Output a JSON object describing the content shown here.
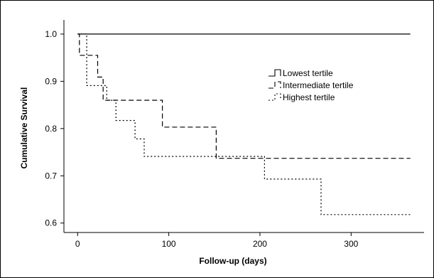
{
  "chart_data": {
    "type": "line",
    "subtype": "kaplan-meier step",
    "title": "",
    "xlabel": "Follow-up (days)",
    "ylabel": "Cumulative Survival",
    "xlim": [
      -15,
      380
    ],
    "ylim": [
      0.58,
      1.03
    ],
    "xticks": [
      0,
      100,
      200,
      300
    ],
    "yticks": [
      0.6,
      0.7,
      0.8,
      0.9,
      1.0
    ],
    "ytick_labels": [
      "0.6",
      "0.7",
      "0.8",
      "0.9",
      "1.0"
    ],
    "grid": false,
    "legend_position": "upper-right",
    "series": [
      {
        "name": "Lowest tertile",
        "style": "solid",
        "color": "#000000",
        "steps": [
          [
            0,
            1.0
          ],
          [
            365,
            1.0
          ]
        ]
      },
      {
        "name": "Intermediate tertile",
        "style": "dashed",
        "color": "#000000",
        "steps": [
          [
            0,
            1.0
          ],
          [
            2,
            0.955
          ],
          [
            22,
            0.909
          ],
          [
            28,
            0.86
          ],
          [
            93,
            0.803
          ],
          [
            152,
            0.737
          ],
          [
            365,
            0.737
          ]
        ]
      },
      {
        "name": "Highest tertile",
        "style": "dotted",
        "color": "#000000",
        "steps": [
          [
            0,
            1.0
          ],
          [
            10,
            0.891
          ],
          [
            32,
            0.86
          ],
          [
            42,
            0.817
          ],
          [
            63,
            0.778
          ],
          [
            73,
            0.741
          ],
          [
            205,
            0.693
          ],
          [
            267,
            0.618
          ],
          [
            365,
            0.618
          ]
        ]
      }
    ]
  }
}
